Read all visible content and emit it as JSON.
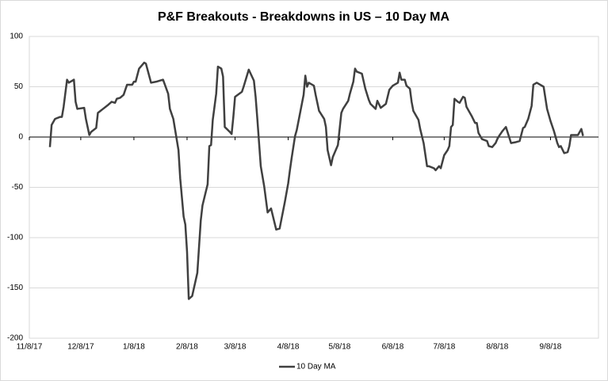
{
  "chart_data": {
    "type": "line",
    "title": "P&F Breakouts - Breakdowns in US – 10 Day MA",
    "x": [
      "2017-11-20",
      "2017-11-21",
      "2017-11-23",
      "2017-11-26",
      "2017-11-27",
      "2017-11-28",
      "2017-11-30",
      "2017-12-01",
      "2017-12-04",
      "2017-12-05",
      "2017-12-06",
      "2017-12-10",
      "2017-12-11",
      "2017-12-13",
      "2017-12-14",
      "2017-12-17",
      "2017-12-18",
      "2017-12-21",
      "2017-12-24",
      "2017-12-26",
      "2017-12-28",
      "2017-12-29",
      "2017-12-31",
      "2018-01-02",
      "2018-01-04",
      "2018-01-07",
      "2018-01-08",
      "2018-01-09",
      "2018-01-11",
      "2018-01-14",
      "2018-01-15",
      "2018-01-18",
      "2018-01-21",
      "2018-01-25",
      "2018-01-28",
      "2018-01-29",
      "2018-01-31",
      "2018-02-03",
      "2018-02-04",
      "2018-02-06",
      "2018-02-07",
      "2018-02-08",
      "2018-02-09",
      "2018-02-11",
      "2018-02-14",
      "2018-02-16",
      "2018-02-17",
      "2018-02-20",
      "2018-02-21",
      "2018-02-22",
      "2018-02-23",
      "2018-02-25",
      "2018-02-26",
      "2018-02-28",
      "2018-03-01",
      "2018-03-02",
      "2018-03-05",
      "2018-03-06",
      "2018-03-07",
      "2018-03-08",
      "2018-03-12",
      "2018-03-13",
      "2018-03-16",
      "2018-03-19",
      "2018-03-20",
      "2018-03-21",
      "2018-03-23",
      "2018-03-25",
      "2018-03-27",
      "2018-03-29",
      "2018-04-01",
      "2018-04-03",
      "2018-04-06",
      "2018-04-08",
      "2018-04-09",
      "2018-04-10",
      "2018-04-12",
      "2018-04-13",
      "2018-04-17",
      "2018-04-18",
      "2018-04-19",
      "2018-04-20",
      "2018-04-23",
      "2018-04-24",
      "2018-04-26",
      "2018-04-29",
      "2018-04-30",
      "2018-05-01",
      "2018-05-03",
      "2018-05-04",
      "2018-05-07",
      "2018-05-09",
      "2018-05-10",
      "2018-05-13",
      "2018-05-14",
      "2018-05-16",
      "2018-05-17",
      "2018-05-18",
      "2018-05-21",
      "2018-05-23",
      "2018-05-25",
      "2018-05-26",
      "2018-05-29",
      "2018-05-30",
      "2018-06-01",
      "2018-06-04",
      "2018-06-06",
      "2018-06-08",
      "2018-06-11",
      "2018-06-12",
      "2018-06-13",
      "2018-06-15",
      "2018-06-16",
      "2018-06-18",
      "2018-06-19",
      "2018-06-20",
      "2018-06-23",
      "2018-06-24",
      "2018-06-26",
      "2018-06-28",
      "2018-06-29",
      "2018-07-02",
      "2018-07-03",
      "2018-07-05",
      "2018-07-06",
      "2018-07-08",
      "2018-07-10",
      "2018-07-11",
      "2018-07-12",
      "2018-07-13",
      "2018-07-14",
      "2018-07-16",
      "2018-07-17",
      "2018-07-19",
      "2018-07-20",
      "2018-07-21",
      "2018-07-24",
      "2018-07-26",
      "2018-07-27",
      "2018-07-28",
      "2018-07-30",
      "2018-08-02",
      "2018-08-03",
      "2018-08-05",
      "2018-08-07",
      "2018-08-08",
      "2018-08-09",
      "2018-08-11",
      "2018-08-13",
      "2018-08-16",
      "2018-08-19",
      "2018-08-21",
      "2018-08-23",
      "2018-08-24",
      "2018-08-26",
      "2018-08-28",
      "2018-08-29",
      "2018-08-31",
      "2018-09-04",
      "2018-09-06",
      "2018-09-08",
      "2018-09-10",
      "2018-09-12",
      "2018-09-13",
      "2018-09-14",
      "2018-09-16",
      "2018-09-18",
      "2018-09-19",
      "2018-09-20",
      "2018-09-23",
      "2018-09-24",
      "2018-09-26",
      "2018-09-27"
    ],
    "series": [
      {
        "name": "10 Day MA",
        "color": "#404040",
        "values": [
          -10,
          12,
          18,
          20,
          20,
          30,
          57,
          54,
          57,
          35,
          28,
          29,
          18,
          2,
          5,
          9,
          24,
          28,
          32,
          35,
          34,
          38,
          39,
          42,
          52,
          52,
          55,
          55,
          68,
          74,
          73,
          54,
          55,
          57,
          43,
          28,
          18,
          -13,
          -41,
          -79,
          -87,
          -114,
          -161,
          -158,
          -135,
          -83,
          -68,
          -47,
          -9,
          -8,
          17,
          43,
          70,
          68,
          60,
          10,
          5,
          3,
          20,
          40,
          45,
          50,
          67,
          56,
          40,
          18,
          -29,
          -49,
          -75,
          -71,
          -92,
          -91,
          -65,
          -46,
          -33,
          -21,
          1,
          7,
          42,
          61,
          50,
          54,
          51,
          42,
          26,
          18,
          10,
          -13,
          -28,
          -20,
          -8,
          24,
          28,
          36,
          43,
          55,
          68,
          65,
          63,
          48,
          37,
          33,
          28,
          36,
          29,
          33,
          47,
          51,
          54,
          64,
          57,
          57,
          51,
          48,
          35,
          26,
          17,
          8,
          -6,
          -29,
          -29,
          -31,
          -33,
          -29,
          -31,
          -18,
          -13,
          -9,
          10,
          12,
          38,
          35,
          34,
          40,
          39,
          30,
          21,
          14,
          14,
          4,
          -2,
          -4,
          -9,
          -10,
          -6,
          -2,
          1,
          6,
          10,
          -6,
          -5,
          -4,
          9,
          10,
          18,
          31,
          52,
          54,
          50,
          28,
          16,
          6,
          -6,
          -10,
          -9,
          -16,
          -15,
          -9,
          2,
          2,
          2,
          8,
          1
        ]
      }
    ],
    "xlim": [
      "2017-11-08",
      "2018-10-06"
    ],
    "xticks": [
      {
        "value": "2017-11-08",
        "label": "11/8/17"
      },
      {
        "value": "2017-12-08",
        "label": "12/8/17"
      },
      {
        "value": "2018-01-08",
        "label": "1/8/18"
      },
      {
        "value": "2018-02-08",
        "label": "2/8/18"
      },
      {
        "value": "2018-03-08",
        "label": "3/8/18"
      },
      {
        "value": "2018-04-08",
        "label": "4/8/18"
      },
      {
        "value": "2018-05-08",
        "label": "5/8/18"
      },
      {
        "value": "2018-06-08",
        "label": "6/8/18"
      },
      {
        "value": "2018-07-08",
        "label": "7/8/18"
      },
      {
        "value": "2018-08-08",
        "label": "8/8/18"
      },
      {
        "value": "2018-09-08",
        "label": "9/8/18"
      }
    ],
    "ylim": [
      -200,
      100
    ],
    "yticks": [
      -200,
      -150,
      -100,
      -50,
      0,
      50,
      100
    ],
    "grid": true,
    "legend": "bottom"
  }
}
